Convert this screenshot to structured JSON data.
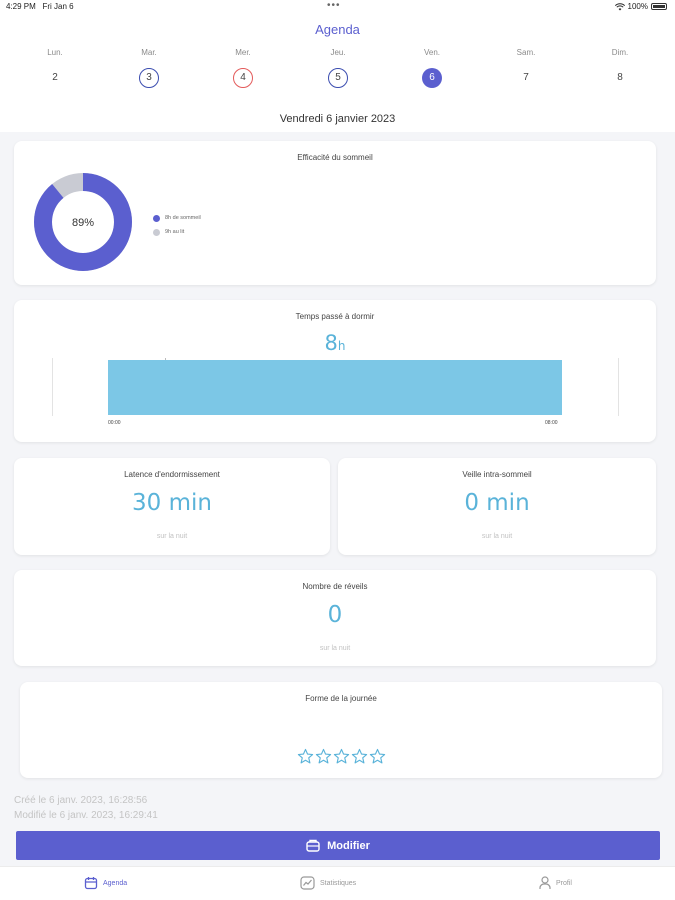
{
  "status_bar": {
    "time": "4:29 PM",
    "date": "Fri Jan 6",
    "battery": "100%"
  },
  "header": {
    "title": "Agenda"
  },
  "week": [
    {
      "name": "Lun.",
      "num": "2",
      "style": "plain"
    },
    {
      "name": "Mar.",
      "num": "3",
      "style": "blue"
    },
    {
      "name": "Mer.",
      "num": "4",
      "style": "red"
    },
    {
      "name": "Jeu.",
      "num": "5",
      "style": "blue"
    },
    {
      "name": "Ven.",
      "num": "6",
      "style": "selected"
    },
    {
      "name": "Sam.",
      "num": "7",
      "style": "plain"
    },
    {
      "name": "Dim.",
      "num": "8",
      "style": "plain"
    }
  ],
  "date_title": "Vendredi 6 janvier 2023",
  "efficiency": {
    "title": "Efficacité du sommeil",
    "percent_label": "89%",
    "percent": 89,
    "legend": [
      {
        "label": "8h de sommeil",
        "color": "#5b5fcf"
      },
      {
        "label": "9h au lit",
        "color": "#c9cbd3"
      }
    ]
  },
  "time_asleep": {
    "title": "Temps passé à dormir",
    "value": "8",
    "unit": "h",
    "start_label": "00:00",
    "end_label": "08:00"
  },
  "latency": {
    "title": "Latence d'endormissement",
    "value": "30 min",
    "sub": "sur la nuit"
  },
  "awake": {
    "title": "Veille intra-sommeil",
    "value": "0 min",
    "sub": "sur la nuit"
  },
  "awakenings": {
    "title": "Nombre de réveils",
    "value": "0",
    "sub": "sur la nuit"
  },
  "mood": {
    "title": "Forme de la journée",
    "stars_total": 5,
    "stars_filled": 0
  },
  "meta": {
    "created": "Créé le 6 janv. 2023, 16:28:56",
    "modified": "Modifié le 6 janv. 2023, 16:29:41"
  },
  "modify_button": {
    "label": "Modifier"
  },
  "tabs": [
    {
      "label": "Agenda",
      "icon": "calendar-icon"
    },
    {
      "label": "Statistiques",
      "icon": "chart-icon"
    },
    {
      "label": "Profil",
      "icon": "person-icon"
    }
  ],
  "colors": {
    "accent": "#5b5fcf",
    "metric": "#5ab3d9",
    "bar": "#7cc7e6",
    "remainder": "#c9cbd3"
  }
}
